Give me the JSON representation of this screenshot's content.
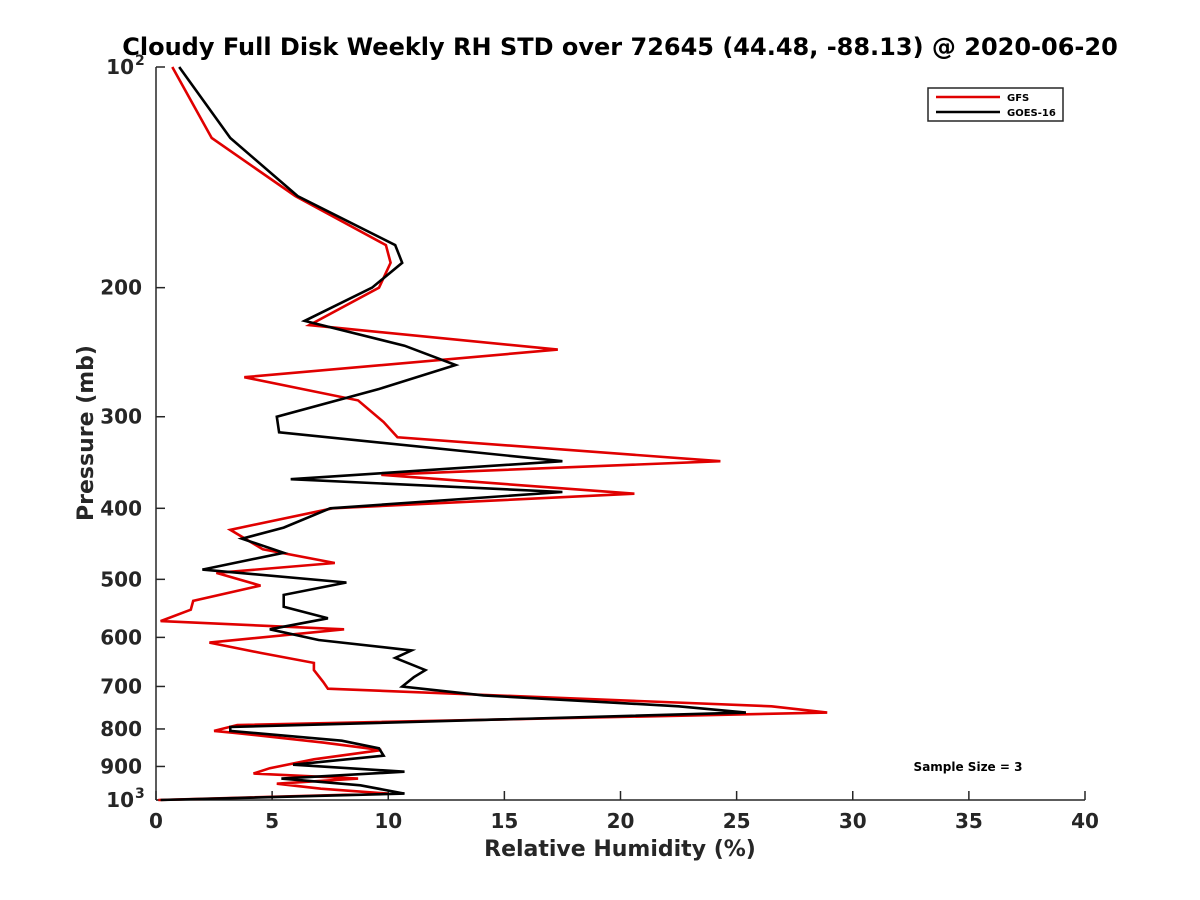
{
  "chart_data": {
    "type": "line",
    "title": "Cloudy Full Disk Weekly RH STD over 72645 (44.48, -88.13) @ 2020-06-20",
    "xlabel": "Relative Humidity (%)",
    "ylabel": "Pressure (mb)",
    "xlim": [
      0,
      40
    ],
    "ylim": [
      100,
      1000
    ],
    "y_scale": "log",
    "y_reversed": true,
    "grid": false,
    "legend_position": "top-right",
    "x_ticks": [
      0,
      5,
      10,
      15,
      20,
      25,
      30,
      35,
      40
    ],
    "y_ticks": [
      {
        "value": 100,
        "label": "10",
        "sup": "2"
      },
      {
        "value": 200,
        "label": "200",
        "sup": ""
      },
      {
        "value": 300,
        "label": "300",
        "sup": ""
      },
      {
        "value": 400,
        "label": "400",
        "sup": ""
      },
      {
        "value": 500,
        "label": "500",
        "sup": ""
      },
      {
        "value": 600,
        "label": "600",
        "sup": ""
      },
      {
        "value": 700,
        "label": "700",
        "sup": ""
      },
      {
        "value": 800,
        "label": "800",
        "sup": ""
      },
      {
        "value": 900,
        "label": "900",
        "sup": ""
      },
      {
        "value": 1000,
        "label": "10",
        "sup": "3"
      }
    ],
    "annotation": "Sample Size = 3",
    "series": [
      {
        "name": "GFS",
        "color": "#e00000",
        "points": [
          [
            0.7,
            100
          ],
          [
            2.4,
            125
          ],
          [
            6.0,
            150
          ],
          [
            9.9,
            175
          ],
          [
            10.1,
            185
          ],
          [
            9.6,
            200
          ],
          [
            6.6,
            225
          ],
          [
            17.3,
            243
          ],
          [
            3.8,
            265
          ],
          [
            8.7,
            285
          ],
          [
            9.8,
            305
          ],
          [
            10.4,
            320
          ],
          [
            24.3,
            345
          ],
          [
            9.7,
            360
          ],
          [
            20.6,
            382
          ],
          [
            7.6,
            400
          ],
          [
            3.2,
            428
          ],
          [
            4.6,
            455
          ],
          [
            7.7,
            475
          ],
          [
            2.6,
            490
          ],
          [
            4.5,
            510
          ],
          [
            1.6,
            535
          ],
          [
            1.5,
            550
          ],
          [
            0.2,
            570
          ],
          [
            8.1,
            585
          ],
          [
            2.3,
            610
          ],
          [
            4.5,
            630
          ],
          [
            6.8,
            650
          ],
          [
            6.8,
            665
          ],
          [
            7.2,
            690
          ],
          [
            7.4,
            705
          ],
          [
            26.5,
            745
          ],
          [
            28.9,
            760
          ],
          [
            3.5,
            790
          ],
          [
            2.5,
            805
          ],
          [
            3.4,
            810
          ],
          [
            7.2,
            835
          ],
          [
            9.7,
            855
          ],
          [
            6.8,
            880
          ],
          [
            4.9,
            905
          ],
          [
            4.2,
            920
          ],
          [
            8.7,
            935
          ],
          [
            5.2,
            950
          ],
          [
            7.1,
            965
          ],
          [
            10.0,
            980
          ],
          [
            0.1,
            1000
          ]
        ]
      },
      {
        "name": "GOES-16",
        "color": "#000000",
        "points": [
          [
            1.0,
            100
          ],
          [
            3.2,
            125
          ],
          [
            6.1,
            150
          ],
          [
            10.3,
            175
          ],
          [
            10.6,
            185
          ],
          [
            9.3,
            200
          ],
          [
            6.4,
            222
          ],
          [
            10.7,
            240
          ],
          [
            12.9,
            255
          ],
          [
            9.6,
            275
          ],
          [
            5.2,
            300
          ],
          [
            5.3,
            315
          ],
          [
            17.5,
            345
          ],
          [
            5.8,
            365
          ],
          [
            17.5,
            380
          ],
          [
            7.5,
            400
          ],
          [
            5.5,
            425
          ],
          [
            3.7,
            440
          ],
          [
            5.5,
            460
          ],
          [
            2.0,
            485
          ],
          [
            8.2,
            505
          ],
          [
            5.5,
            525
          ],
          [
            5.5,
            545
          ],
          [
            7.4,
            565
          ],
          [
            4.9,
            585
          ],
          [
            7.0,
            605
          ],
          [
            11.0,
            625
          ],
          [
            10.3,
            640
          ],
          [
            11.6,
            665
          ],
          [
            11.1,
            680
          ],
          [
            10.6,
            700
          ],
          [
            14.1,
            720
          ],
          [
            22.5,
            745
          ],
          [
            25.4,
            760
          ],
          [
            3.2,
            795
          ],
          [
            3.2,
            805
          ],
          [
            8.0,
            830
          ],
          [
            9.6,
            850
          ],
          [
            9.8,
            870
          ],
          [
            5.9,
            895
          ],
          [
            10.7,
            915
          ],
          [
            5.4,
            935
          ],
          [
            8.8,
            955
          ],
          [
            10.7,
            980
          ],
          [
            0.2,
            1000
          ]
        ]
      }
    ]
  }
}
